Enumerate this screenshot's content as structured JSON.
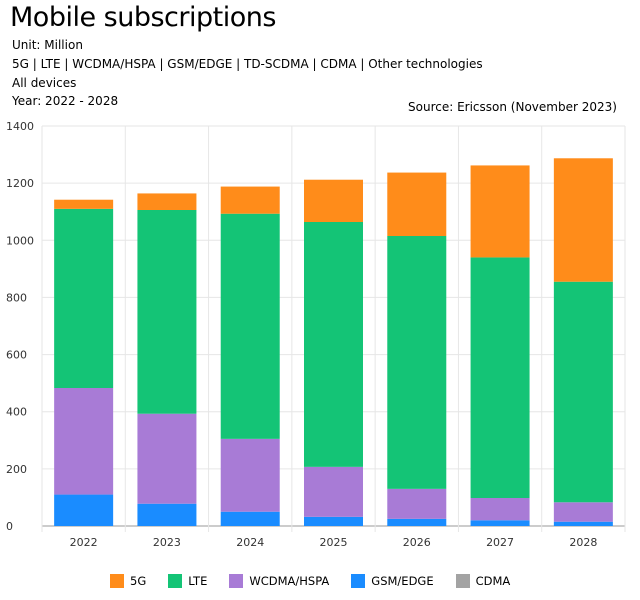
{
  "header": {
    "title": "Mobile subscriptions",
    "unit": "Unit: Million",
    "technologies": "5G | LTE | WCDMA/HSPA | GSM/EDGE | TD-SCDMA | CDMA | Other technologies",
    "devices": "All devices",
    "years": "Year: 2022 - 2028",
    "source": "Source: Ericsson (November 2023)"
  },
  "chart_data": {
    "type": "bar",
    "stacked": true,
    "categories": [
      "2022",
      "2023",
      "2024",
      "2025",
      "2026",
      "2027",
      "2028"
    ],
    "ylim": [
      0,
      1400
    ],
    "yticks": [
      0,
      200,
      400,
      600,
      800,
      1000,
      1200,
      1400
    ],
    "grid": true,
    "legend_position": "bottom",
    "series": [
      {
        "name": "GSM/EDGE",
        "color": "#1a8cff",
        "values": [
          110,
          78,
          50,
          32,
          25,
          20,
          15
        ]
      },
      {
        "name": "WCDMA/HSPA",
        "color": "#a87bd6",
        "values": [
          373,
          315,
          255,
          175,
          105,
          78,
          68
        ]
      },
      {
        "name": "LTE",
        "color": "#14c476",
        "values": [
          627,
          713,
          788,
          857,
          885,
          842,
          772
        ]
      },
      {
        "name": "5G",
        "color": "#ff8c1a",
        "values": [
          32,
          58,
          95,
          148,
          222,
          322,
          432
        ]
      },
      {
        "name": "CDMA",
        "color": "#a3a3a3",
        "values": [
          0,
          0,
          0,
          0,
          0,
          0,
          0
        ]
      }
    ],
    "legend_order": [
      "5G",
      "LTE",
      "WCDMA/HSPA",
      "GSM/EDGE",
      "CDMA"
    ]
  }
}
